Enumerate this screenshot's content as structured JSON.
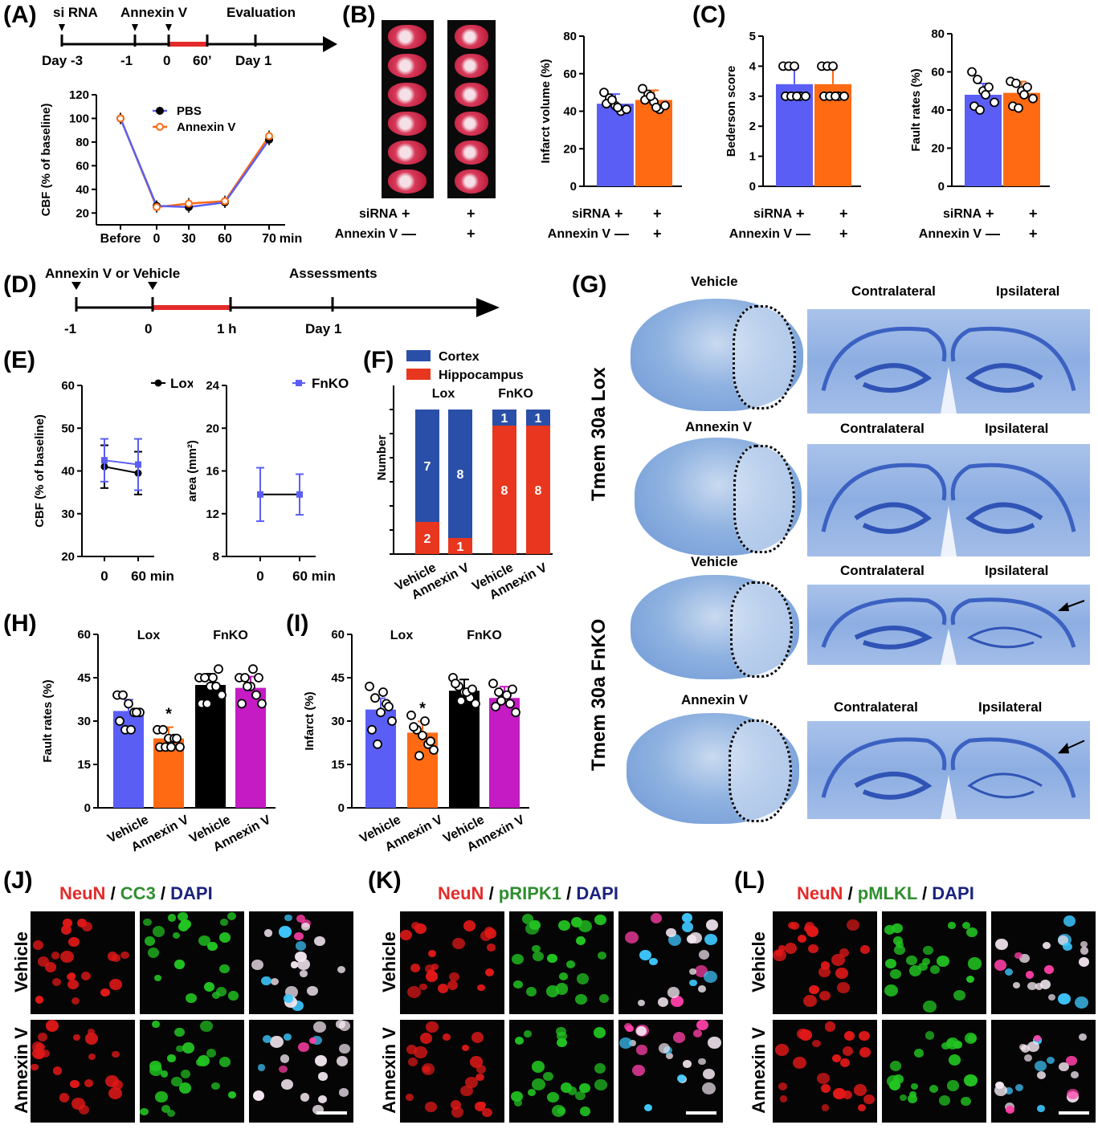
{
  "panels": {
    "A": "(A)",
    "B": "(B)",
    "C": "(C)",
    "D": "(D)",
    "E": "(E)",
    "F": "(F)",
    "G": "(G)",
    "H": "(H)",
    "I": "(I)",
    "J": "(J)",
    "K": "(K)",
    "L": "(L)"
  },
  "timelineA": {
    "top_labels": [
      "si RNA",
      "Annexin V",
      "Evaluation"
    ],
    "bottom_labels": [
      "Day -3",
      "-1",
      "0",
      "60’",
      "Day 1"
    ]
  },
  "timelineD": {
    "top_labels": [
      "Annexin V or Vehicle",
      "Assessments"
    ],
    "bottom_labels": [
      "-1",
      "0",
      "1 h",
      "Day 1"
    ]
  },
  "conditions": {
    "sirna": "siRNA",
    "annexin": "Annexin V",
    "plus": "+",
    "minus": "—"
  },
  "colors": {
    "blue": "#5b5ef5",
    "orange": "#ff6a13",
    "black": "#000000",
    "magenta": "#c41bc4",
    "cortex": "#2a4fa8",
    "hippo": "#e8371e",
    "red": "#e32b2b"
  },
  "chart_data": [
    {
      "id": "A-cbf",
      "type": "line",
      "ylabel": "CBF (% of baseline)",
      "categories": [
        "Before",
        "0",
        "30",
        "60",
        "70"
      ],
      "x_unit": "min",
      "yticks": [
        20,
        40,
        60,
        80,
        100,
        120
      ],
      "series": [
        {
          "name": "PBS",
          "values": [
            100,
            26,
            25,
            29,
            82
          ]
        },
        {
          "name": "Annexin V",
          "values": [
            100,
            25,
            28,
            30,
            85
          ]
        }
      ]
    },
    {
      "id": "B-infarct",
      "type": "bar",
      "ylabel": "Infarct volume (%)",
      "ylim": [
        0,
        80
      ],
      "yticks": [
        0,
        20,
        40,
        60,
        80
      ],
      "values": [
        44,
        46
      ],
      "points": [
        [
          50,
          47,
          43,
          40,
          41,
          44,
          46,
          42
        ],
        [
          52,
          49,
          45,
          41,
          43,
          46,
          48,
          42
        ]
      ]
    },
    {
      "id": "C-bederson",
      "type": "bar",
      "ylabel": "Bederson score",
      "ylim": [
        0,
        5
      ],
      "yticks": [
        0,
        1,
        2,
        3,
        4,
        5
      ],
      "values": [
        3.4,
        3.4
      ],
      "points": [
        [
          4,
          4,
          4,
          3,
          3,
          3,
          3,
          3
        ],
        [
          4,
          4,
          4,
          3,
          3,
          3,
          3,
          3
        ]
      ]
    },
    {
      "id": "C-fault",
      "type": "bar",
      "ylabel": "Fault rates (%)",
      "ylim": [
        0,
        80
      ],
      "yticks": [
        0,
        20,
        40,
        60,
        80
      ],
      "values": [
        48,
        49
      ],
      "points": [
        [
          60,
          56,
          50,
          52,
          44,
          42,
          40,
          48
        ],
        [
          55,
          54,
          50,
          52,
          46,
          42,
          41,
          48
        ]
      ]
    },
    {
      "id": "E-cbf",
      "type": "line",
      "ylabel": "CBF (% of baseline)",
      "ylim": [
        20,
        60
      ],
      "yticks": [
        20,
        30,
        40,
        50,
        60
      ],
      "categories": [
        "0",
        "60 min"
      ],
      "series": [
        {
          "name": "Lox",
          "values": [
            41,
            39.5
          ],
          "err": [
            5,
            5
          ]
        },
        {
          "name": "FnKO",
          "values": [
            42.5,
            41.5
          ],
          "err": [
            5,
            6
          ]
        }
      ]
    },
    {
      "id": "E-area",
      "type": "line",
      "ylabel": "area (mm²)",
      "ylim": [
        8,
        24
      ],
      "yticks": [
        8,
        12,
        16,
        20,
        24
      ],
      "categories": [
        "0",
        "60 min"
      ],
      "series": [
        {
          "name": "FnKO",
          "values": [
            13.8,
            13.8
          ],
          "err": [
            2.5,
            1.9
          ]
        }
      ]
    },
    {
      "id": "F-number",
      "type": "bar",
      "ylabel": "Number",
      "group_labels": [
        "Lox",
        "FnKO"
      ],
      "categories": [
        "Vehicle",
        "Annexin V",
        "Vehicle",
        "Annexin V"
      ],
      "series": [
        {
          "name": "Cortex",
          "values": [
            7,
            8,
            1,
            1
          ]
        },
        {
          "name": "Hippocampus",
          "values": [
            2,
            1,
            8,
            8
          ]
        }
      ]
    },
    {
      "id": "H-fault",
      "type": "bar",
      "ylabel": "Fault rates (%)",
      "ylim": [
        0,
        60
      ],
      "yticks": [
        0,
        15,
        30,
        45,
        60
      ],
      "group_labels": [
        "Lox",
        "FnKO"
      ],
      "star": "*",
      "categories": [
        "Vehicle",
        "Annexin V",
        "Vehicle",
        "Annexin V"
      ],
      "values": [
        33.5,
        24,
        42.5,
        41.5
      ],
      "points": [
        [
          39,
          39,
          36,
          33,
          33,
          30,
          27,
          27,
          33
        ],
        [
          27,
          27,
          24,
          24,
          21,
          21,
          21,
          21,
          24
        ],
        [
          45,
          45,
          42,
          42,
          39,
          36,
          36,
          45,
          48
        ],
        [
          45,
          45,
          42,
          39,
          36,
          36,
          42,
          48,
          45
        ]
      ]
    },
    {
      "id": "I-infarct",
      "type": "bar",
      "ylabel": "Infarct (%)",
      "ylim": [
        0,
        60
      ],
      "yticks": [
        0,
        15,
        30,
        45,
        60
      ],
      "group_labels": [
        "Lox",
        "FnKO"
      ],
      "star": "*",
      "categories": [
        "Vehicle",
        "Annexin V",
        "Vehicle",
        "Annexin V"
      ],
      "values": [
        34,
        26,
        40.5,
        38
      ],
      "points": [
        [
          42,
          38,
          33,
          36,
          30,
          27,
          22,
          40,
          35
        ],
        [
          32,
          27,
          25,
          22,
          20,
          28,
          18,
          30,
          23
        ],
        [
          45,
          42,
          40,
          38,
          36,
          43,
          37,
          40,
          41
        ],
        [
          43,
          40,
          38,
          36,
          33,
          35,
          37,
          39,
          41
        ]
      ]
    }
  ],
  "panelB": {
    "legend_pbs": "PBS"
  },
  "panelE": {
    "lox": "Lox",
    "fnko": "FnKO",
    "xunit": "min"
  },
  "panelF": {
    "legend_cortex": "Cortex",
    "legend_hippo": "Hippocampus"
  },
  "panelG": {
    "row_groups": [
      "Tmem 30a Lox",
      "Tmem 30a  FnKO"
    ],
    "rows": [
      {
        "title": "Vehicle",
        "left": "Contralateral",
        "right": "Ipsilateral"
      },
      {
        "title": "Annexin V",
        "left": "Contralateral",
        "right": "Ipsilateral"
      },
      {
        "title": "Vehicle",
        "left": "Contralateral",
        "right": "Ipsilateral"
      },
      {
        "title": "Annexin V",
        "left": "Contralateral",
        "right": "Ipsilateral"
      }
    ]
  },
  "panelJ": {
    "neun": "NeuN",
    "marker": "CC3",
    "dapi": "DAPI",
    "sep": " / "
  },
  "panelK": {
    "neun": "NeuN",
    "marker": "pRIPK1",
    "dapi": "DAPI",
    "sep": " / "
  },
  "panelL": {
    "neun": "NeuN",
    "marker": "pMLKL",
    "dapi": "DAPI",
    "sep": " / "
  },
  "micro_rows": [
    "Vehicle",
    "Annexin V"
  ]
}
